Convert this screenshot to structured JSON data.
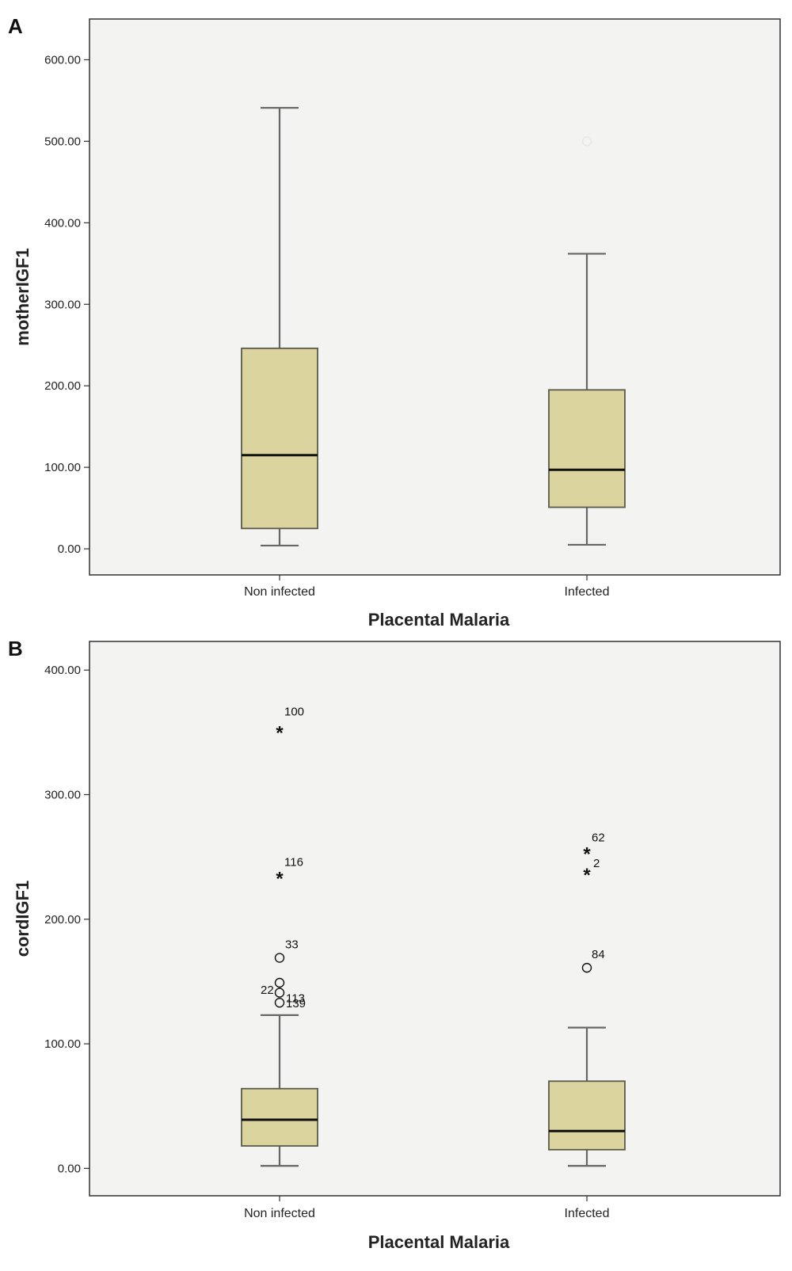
{
  "chart_data": [
    {
      "type": "box",
      "panel_label": "A",
      "xlabel": "Placental Malaria",
      "ylabel": "motherIGF1",
      "yticks": [
        "0.00",
        "100.00",
        "200.00",
        "300.00",
        "400.00",
        "500.00",
        "600.00"
      ],
      "ylim": [
        -32,
        650
      ],
      "grid": false,
      "categories": [
        "Non infected",
        "Infected"
      ],
      "boxes": [
        {
          "category": "Non infected",
          "min": 4,
          "q1": 25,
          "median": 115,
          "q3": 246,
          "max": 541,
          "outliers": []
        },
        {
          "category": "Infected",
          "min": 5,
          "q1": 51,
          "median": 97,
          "q3": 195,
          "max": 362,
          "outliers": [
            {
              "value": 500,
              "marker": "circle",
              "label": ""
            }
          ]
        }
      ]
    },
    {
      "type": "box",
      "panel_label": "B",
      "xlabel": "Placental Malaria",
      "ylabel": "cordIGF1",
      "yticks": [
        "0.00",
        "100.00",
        "200.00",
        "300.00",
        "400.00"
      ],
      "ylim": [
        -22,
        423
      ],
      "grid": false,
      "categories": [
        "Non infected",
        "Infected"
      ],
      "boxes": [
        {
          "category": "Non infected",
          "min": 2,
          "q1": 18,
          "median": 39,
          "q3": 64,
          "max": 123,
          "outliers": [
            {
              "value": 352,
              "marker": "star",
              "label": "100"
            },
            {
              "value": 235,
              "marker": "star",
              "label": "116"
            },
            {
              "value": 169,
              "marker": "circle",
              "label": "33"
            },
            {
              "value": 149,
              "marker": "circle",
              "label": "22"
            },
            {
              "value": 141,
              "marker": "circle",
              "label": "113"
            },
            {
              "value": 133,
              "marker": "circle",
              "label": "139"
            }
          ]
        },
        {
          "category": "Infected",
          "min": 2,
          "q1": 15,
          "median": 30,
          "q3": 70,
          "max": 113,
          "outliers": [
            {
              "value": 255,
              "marker": "star",
              "label": "62"
            },
            {
              "value": 238,
              "marker": "star",
              "label": "2"
            },
            {
              "value": 161,
              "marker": "circle",
              "label": "84"
            }
          ]
        }
      ]
    }
  ],
  "colors": {
    "plot_background": "#f3f3f2",
    "box_fill": "#dcd49e",
    "box_stroke": "#5a5a4a",
    "whisker": "#666666",
    "median": "#111111",
    "frame": "#333333",
    "faint_outlier": "#e6e6e6"
  }
}
